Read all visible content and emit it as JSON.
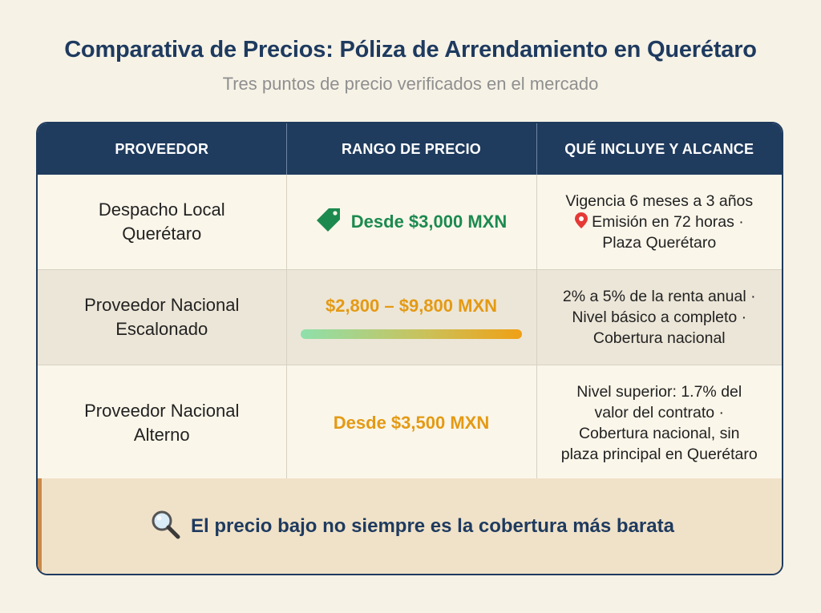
{
  "header": {
    "title": "Comparativa de Precios: Póliza de Arrendamiento en Querétaro",
    "subtitle": "Tres puntos de precio verificados en el mercado"
  },
  "table": {
    "columns": [
      "PROVEEDOR",
      "RANGO DE PRECIO",
      "QUÉ INCLUYE Y ALCANCE"
    ],
    "rows": [
      {
        "provider": [
          "Despacho Local",
          "Querétaro"
        ],
        "price": "Desde $3,000 MXN",
        "price_icon": "price-tag-icon",
        "scope": [
          "Vigencia 6 meses a 3 años",
          "Emisión en 72 horas ·",
          "Plaza Querétaro"
        ],
        "scope_icon": "location-pin-icon"
      },
      {
        "provider": [
          "Proveedor Nacional",
          "Escalonado"
        ],
        "price": "$2,800 – $9,800 MXN",
        "scope": [
          "2% a 5% de la renta anual ·",
          "Nivel básico a completo ·",
          "Cobertura nacional"
        ]
      },
      {
        "provider": [
          "Proveedor Nacional",
          "Alterno"
        ],
        "price": "Desde $3,500 MXN",
        "scope": [
          "Nivel superior: 1.7% del",
          "valor del contrato ·",
          "Cobertura nacional, sin",
          "plaza principal en Querétaro"
        ]
      }
    ]
  },
  "footer": {
    "icon": "magnifier-icon",
    "text": "El precio bajo no siempre es la cobertura más barata"
  },
  "colors": {
    "navy": "#1f3b5e",
    "green": "#1c8a4f",
    "orange": "#e49a14",
    "background": "#f6f2e6",
    "banner": "#f0e2c8"
  }
}
